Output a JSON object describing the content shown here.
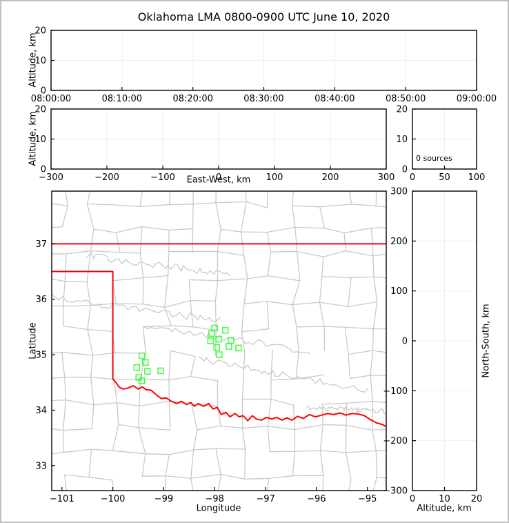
{
  "title": "Oklahoma LMA 0800-0900 UTC June 10, 2020",
  "colors": {
    "axis": "#000000",
    "grid": "#f0f0f0",
    "county": "#c9c9c9",
    "state_border": "#ff0000",
    "station": "#44ff44",
    "figure_border": "#bfbfbf",
    "background": "#ffffff"
  },
  "chart_data": [
    {
      "id": "time_height",
      "type": "scatter",
      "ylabel": "Altitude, km",
      "xticks": [
        "08:00:00",
        "08:10:00",
        "08:20:00",
        "08:30:00",
        "08:40:00",
        "08:50:00",
        "09:00:00"
      ],
      "yticks": [
        0,
        10,
        20
      ],
      "ylim": [
        0,
        20
      ],
      "points": []
    },
    {
      "id": "ew_height",
      "type": "scatter",
      "xlabel": "East-West, km",
      "ylabel": "Altitude, km",
      "xticks": [
        -300,
        -200,
        -100,
        0,
        100,
        200,
        300
      ],
      "xlim": [
        -300,
        300
      ],
      "yticks": [
        0,
        10,
        20
      ],
      "ylim": [
        0,
        20
      ],
      "points": []
    },
    {
      "id": "alt_histogram",
      "type": "line",
      "annotation": "0 sources",
      "xticks": [
        0,
        50,
        100
      ],
      "xlim": [
        0,
        100
      ],
      "yticks": [
        0,
        10,
        20
      ],
      "ylim": [
        0,
        20
      ],
      "points": []
    },
    {
      "id": "plan_view",
      "type": "scatter",
      "xlabel": "Longitude",
      "ylabel": "Latitude",
      "xticks": [
        -101,
        -100,
        -99,
        -98,
        -97,
        -96,
        -95
      ],
      "xlim": [
        -101.2,
        -94.63
      ],
      "yticks": [
        33,
        34,
        35,
        36,
        37
      ],
      "ylim": [
        32.55,
        37.95
      ],
      "stations_lonlat": [
        [
          -98.0,
          35.48
        ],
        [
          -97.79,
          35.44
        ],
        [
          -98.06,
          35.38
        ],
        [
          -97.92,
          35.28
        ],
        [
          -98.08,
          35.25
        ],
        [
          -97.68,
          35.26
        ],
        [
          -97.96,
          35.13
        ],
        [
          -97.72,
          35.15
        ],
        [
          -97.53,
          35.12
        ],
        [
          -97.91,
          35.0
        ],
        [
          -99.43,
          34.98
        ],
        [
          -99.36,
          34.86
        ],
        [
          -99.53,
          34.77
        ],
        [
          -99.32,
          34.7
        ],
        [
          -99.06,
          34.71
        ],
        [
          -99.49,
          34.59
        ],
        [
          -99.43,
          34.53
        ]
      ],
      "state_border": {
        "north_lat37": [
          [
            -101.2,
            37.0
          ],
          [
            -94.63,
            37.0
          ]
        ],
        "panhandle_west_red_river": [
          [
            -101.2,
            36.5
          ],
          [
            -100.0,
            36.5
          ],
          [
            -100.0,
            34.56
          ],
          [
            -99.95,
            34.51
          ],
          [
            -99.88,
            34.42
          ],
          [
            -99.8,
            34.38
          ],
          [
            -99.7,
            34.4
          ],
          [
            -99.6,
            34.44
          ],
          [
            -99.5,
            34.38
          ],
          [
            -99.42,
            34.42
          ],
          [
            -99.35,
            34.37
          ],
          [
            -99.25,
            34.36
          ],
          [
            -99.15,
            34.28
          ],
          [
            -99.05,
            34.21
          ],
          [
            -98.95,
            34.22
          ],
          [
            -98.85,
            34.16
          ],
          [
            -98.75,
            34.12
          ],
          [
            -98.65,
            34.16
          ],
          [
            -98.55,
            34.1
          ],
          [
            -98.47,
            34.14
          ],
          [
            -98.4,
            34.07
          ],
          [
            -98.32,
            34.12
          ],
          [
            -98.22,
            34.07
          ],
          [
            -98.12,
            34.12
          ],
          [
            -98.03,
            34.02
          ],
          [
            -97.95,
            34.05
          ],
          [
            -97.87,
            33.92
          ],
          [
            -97.78,
            33.96
          ],
          [
            -97.7,
            33.88
          ],
          [
            -97.6,
            33.94
          ],
          [
            -97.52,
            33.88
          ],
          [
            -97.44,
            33.9
          ],
          [
            -97.35,
            33.81
          ],
          [
            -97.26,
            33.9
          ],
          [
            -97.18,
            33.84
          ],
          [
            -97.08,
            33.82
          ],
          [
            -96.98,
            33.87
          ],
          [
            -96.88,
            33.84
          ],
          [
            -96.78,
            33.87
          ],
          [
            -96.68,
            33.82
          ],
          [
            -96.58,
            33.86
          ],
          [
            -96.48,
            33.82
          ],
          [
            -96.37,
            33.89
          ],
          [
            -96.26,
            33.85
          ],
          [
            -96.14,
            33.92
          ],
          [
            -96.02,
            33.88
          ],
          [
            -95.9,
            33.91
          ],
          [
            -95.78,
            33.94
          ],
          [
            -95.66,
            33.92
          ],
          [
            -95.54,
            33.95
          ],
          [
            -95.42,
            33.91
          ],
          [
            -95.3,
            33.94
          ],
          [
            -95.18,
            33.93
          ],
          [
            -95.06,
            33.9
          ],
          [
            -94.94,
            33.83
          ],
          [
            -94.82,
            33.77
          ],
          [
            -94.7,
            33.74
          ],
          [
            -94.63,
            33.7
          ]
        ]
      }
    },
    {
      "id": "ns_height",
      "type": "scatter",
      "xlabel": "Altitude, km",
      "ylabel": "North-South, km",
      "xticks": [
        0,
        10,
        20
      ],
      "xlim": [
        0,
        20
      ],
      "yticks": [
        -300,
        -200,
        -100,
        0,
        100,
        200,
        300
      ],
      "ylim": [
        -300,
        300
      ],
      "points": []
    }
  ]
}
